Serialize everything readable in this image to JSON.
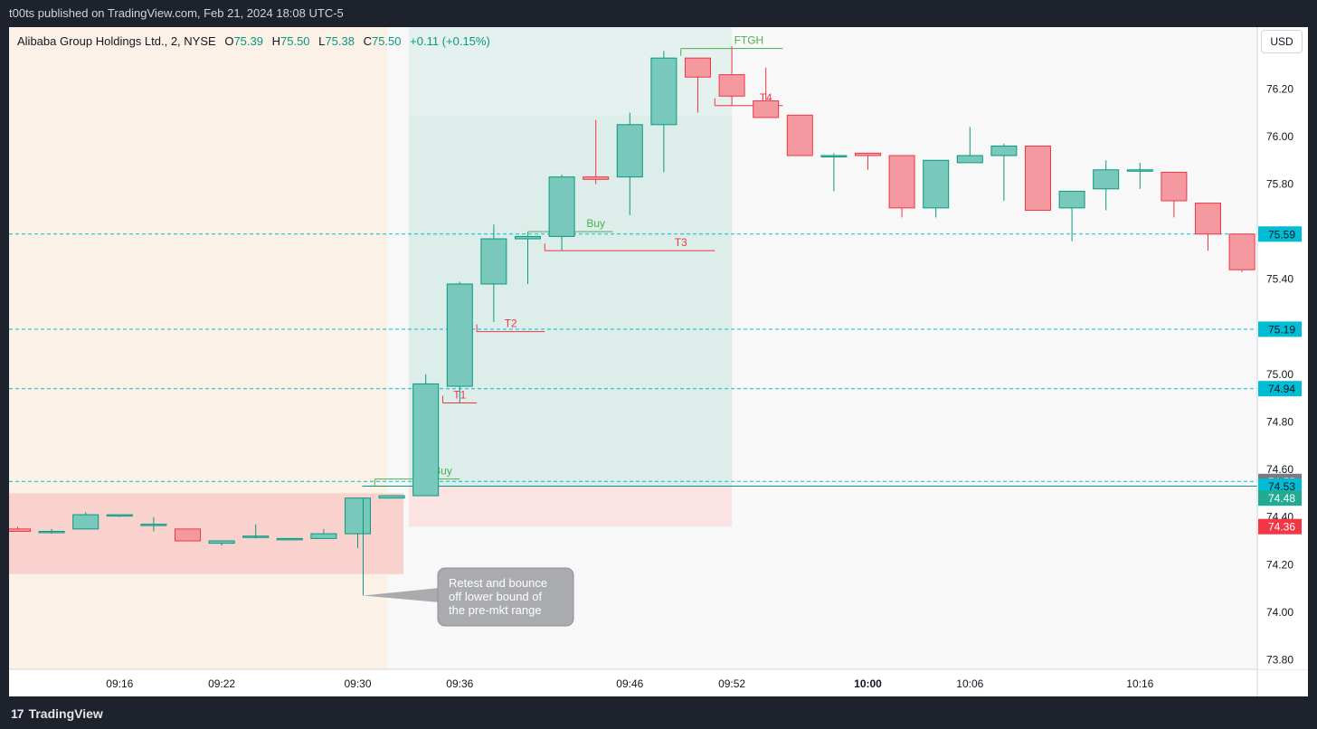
{
  "header": {
    "published_by": "t00ts published on TradingView.com, Feb 21, 2024 18:08 UTC-5"
  },
  "symbol": {
    "name": "Alibaba Group Holdings Ltd., 2, NYSE",
    "open_label": "O",
    "open": "75.39",
    "high_label": "H",
    "high": "75.50",
    "low_label": "L",
    "low": "75.38",
    "close_label": "C",
    "close": "75.50",
    "change": "+0.11 (+0.15%)"
  },
  "currency": "USD",
  "footer": {
    "brand": "TradingView",
    "logo_icon": "tradingview-logo-icon"
  },
  "colors": {
    "up": "#089981",
    "up_fill": "#78c8bc",
    "down": "#f23645",
    "down_fill": "#f4999f",
    "level": "#00bcd4",
    "premarket": "#fbf1e6",
    "range_zone": "#f9d1cd"
  },
  "chart_data": {
    "type": "candlestick",
    "ylim": [
      73.76,
      76.46
    ],
    "y_ticks": [
      "73.80",
      "74.00",
      "74.20",
      "74.40",
      "74.60",
      "74.80",
      "75.00",
      "75.20",
      "75.40",
      "75.60",
      "75.80",
      "76.00",
      "76.20"
    ],
    "x_ticks": [
      {
        "label": "09:16",
        "t": "09:16",
        "bold": false
      },
      {
        "label": "09:22",
        "t": "09:22",
        "bold": false
      },
      {
        "label": "09:30",
        "t": "09:30",
        "bold": false
      },
      {
        "label": "09:36",
        "t": "09:36",
        "bold": false
      },
      {
        "label": "09:46",
        "t": "09:46",
        "bold": false
      },
      {
        "label": "09:52",
        "t": "09:52",
        "bold": false
      },
      {
        "label": "10:00",
        "t": "10:00",
        "bold": true
      },
      {
        "label": "10:06",
        "t": "10:06",
        "bold": false
      },
      {
        "label": "10:16",
        "t": "10:16",
        "bold": false
      }
    ],
    "candles": [
      {
        "t": "09:10",
        "o": 74.35,
        "h": 74.36,
        "l": 74.34,
        "c": 74.34
      },
      {
        "t": "09:12",
        "o": 74.34,
        "h": 74.35,
        "l": 74.33,
        "c": 74.34
      },
      {
        "t": "09:14",
        "o": 74.35,
        "h": 74.42,
        "l": 74.35,
        "c": 74.41
      },
      {
        "t": "09:16",
        "o": 74.41,
        "h": 74.41,
        "l": 74.4,
        "c": 74.41
      },
      {
        "t": "09:18",
        "o": 74.37,
        "h": 74.4,
        "l": 74.34,
        "c": 74.37
      },
      {
        "t": "09:20",
        "o": 74.35,
        "h": 74.35,
        "l": 74.3,
        "c": 74.3
      },
      {
        "t": "09:22",
        "o": 74.29,
        "h": 74.3,
        "l": 74.28,
        "c": 74.3
      },
      {
        "t": "09:24",
        "o": 74.32,
        "h": 74.37,
        "l": 74.31,
        "c": 74.32
      },
      {
        "t": "09:26",
        "o": 74.31,
        "h": 74.31,
        "l": 74.31,
        "c": 74.31
      },
      {
        "t": "09:28",
        "o": 74.31,
        "h": 74.35,
        "l": 74.31,
        "c": 74.33
      },
      {
        "t": "09:30",
        "o": 74.33,
        "h": 74.48,
        "l": 74.27,
        "c": 74.48
      },
      {
        "t": "09:32",
        "o": 74.48,
        "h": 74.49,
        "l": 74.48,
        "c": 74.49
      },
      {
        "t": "09:34",
        "o": 74.49,
        "h": 75.0,
        "l": 74.49,
        "c": 74.96
      },
      {
        "t": "09:36",
        "o": 74.95,
        "h": 75.39,
        "l": 74.88,
        "c": 75.38
      },
      {
        "t": "09:38",
        "o": 75.38,
        "h": 75.63,
        "l": 75.22,
        "c": 75.57
      },
      {
        "t": "09:40",
        "o": 75.57,
        "h": 75.58,
        "l": 75.38,
        "c": 75.58
      },
      {
        "t": "09:42",
        "o": 75.58,
        "h": 75.84,
        "l": 75.52,
        "c": 75.83
      },
      {
        "t": "09:44",
        "o": 75.83,
        "h": 76.07,
        "l": 75.8,
        "c": 75.82
      },
      {
        "t": "09:46",
        "o": 75.83,
        "h": 76.1,
        "l": 75.67,
        "c": 76.05
      },
      {
        "t": "09:48",
        "o": 76.05,
        "h": 76.36,
        "l": 75.85,
        "c": 76.33
      },
      {
        "t": "09:50",
        "o": 76.33,
        "h": 76.33,
        "l": 76.1,
        "c": 76.25
      },
      {
        "t": "09:52",
        "o": 76.26,
        "h": 76.38,
        "l": 76.13,
        "c": 76.17
      },
      {
        "t": "09:54",
        "o": 76.15,
        "h": 76.29,
        "l": 76.08,
        "c": 76.08
      },
      {
        "t": "09:56",
        "o": 76.09,
        "h": 76.09,
        "l": 75.92,
        "c": 75.92
      },
      {
        "t": "09:58",
        "o": 75.92,
        "h": 75.93,
        "l": 75.77,
        "c": 75.92
      },
      {
        "t": "10:00",
        "o": 75.93,
        "h": 75.93,
        "l": 75.86,
        "c": 75.92
      },
      {
        "t": "10:02",
        "o": 75.92,
        "h": 75.92,
        "l": 75.66,
        "c": 75.7
      },
      {
        "t": "10:04",
        "o": 75.7,
        "h": 75.9,
        "l": 75.66,
        "c": 75.9
      },
      {
        "t": "10:06",
        "o": 75.89,
        "h": 76.04,
        "l": 75.89,
        "c": 75.92
      },
      {
        "t": "10:08",
        "o": 75.92,
        "h": 75.97,
        "l": 75.73,
        "c": 75.96
      },
      {
        "t": "10:10",
        "o": 75.96,
        "h": 75.96,
        "l": 75.69,
        "c": 75.69
      },
      {
        "t": "10:12",
        "o": 75.7,
        "h": 75.77,
        "l": 75.56,
        "c": 75.77
      },
      {
        "t": "10:14",
        "o": 75.78,
        "h": 75.9,
        "l": 75.69,
        "c": 75.86
      },
      {
        "t": "10:16",
        "o": 75.86,
        "h": 75.89,
        "l": 75.78,
        "c": 75.86
      },
      {
        "t": "10:18",
        "o": 75.85,
        "h": 75.85,
        "l": 75.66,
        "c": 75.73
      },
      {
        "t": "10:20",
        "o": 75.72,
        "h": 75.72,
        "l": 75.52,
        "c": 75.59
      },
      {
        "t": "10:22",
        "o": 75.59,
        "h": 75.59,
        "l": 75.43,
        "c": 75.44
      }
    ],
    "zones": [
      {
        "name": "premarket-session",
        "t0": "09:08",
        "t1": "09:29",
        "y0": 73.76,
        "y1": 76.46,
        "color": "#fbf1e6"
      },
      {
        "name": "premarket-range",
        "t0": "09:08",
        "t1": "09:30",
        "y0": 74.16,
        "y1": 74.5,
        "color": "#f9d1cd"
      },
      {
        "name": "position-profit",
        "t0": "09:33",
        "t1": "09:52",
        "y0": 74.53,
        "y1": 76.46,
        "color": "#e4f1ee"
      },
      {
        "name": "position-profit-target",
        "t0": "09:33",
        "t1": "09:52",
        "y0": 74.53,
        "y1": 76.09,
        "color": "#ddeeea"
      },
      {
        "name": "position-risk",
        "t0": "09:33",
        "t1": "09:52",
        "y0": 74.36,
        "y1": 74.53,
        "color": "#fbe3e3"
      }
    ],
    "levels": [
      {
        "price": 75.59,
        "label": "75.59",
        "color": "#00bcd4",
        "label_color": "#00bcd4"
      },
      {
        "price": 75.19,
        "label": "75.19",
        "color": "#00bcd4",
        "label_color": "#00bcd4"
      },
      {
        "price": 74.94,
        "label": "74.94",
        "color": "#00bcd4",
        "label_color": "#00bcd4"
      },
      {
        "price": 74.55,
        "label": "74.55",
        "color": "#00bcd4",
        "label_color": "#787b86"
      }
    ],
    "price_badges": [
      {
        "price": 74.53,
        "label": "74.53",
        "color": "#00bcd4"
      },
      {
        "price": 74.48,
        "label": "74.48",
        "color": "#22ab94"
      },
      {
        "price": 74.36,
        "label": "74.36",
        "color": "#f23645"
      }
    ],
    "current_price_line": {
      "price": 74.53,
      "t0": "09:30",
      "color": "#089981"
    },
    "annotations": [
      {
        "text": "Buy",
        "kind": "buy",
        "t0": "09:31",
        "t1": "09:36",
        "price": 74.56,
        "label_t": "09:35"
      },
      {
        "text": "Buy",
        "kind": "buy",
        "t0": "09:40",
        "t1": "09:45",
        "price": 75.6,
        "label_t": "09:44"
      },
      {
        "text": "FTGH",
        "kind": "buy",
        "t0": "09:49",
        "t1": "09:55",
        "price": 76.37,
        "label_t": "09:53"
      },
      {
        "text": "T1",
        "kind": "target",
        "t0": "09:35",
        "t1": "09:37",
        "price": 74.88,
        "label_t": "09:36"
      },
      {
        "text": "T2",
        "kind": "target",
        "t0": "09:37",
        "t1": "09:41",
        "price": 75.18,
        "label_t": "09:39"
      },
      {
        "text": "T3",
        "kind": "target",
        "t0": "09:41",
        "t1": "09:51",
        "price": 75.52,
        "label_t": "09:49"
      },
      {
        "text": "T4",
        "kind": "target",
        "t0": "09:51",
        "t1": "09:55",
        "price": 76.13,
        "label_t": "09:54"
      }
    ],
    "callout": {
      "text": [
        "Retest and bounce",
        "off lower bound of",
        "the pre-mkt range"
      ],
      "anchor_t": "09:30",
      "anchor_price": 74.07,
      "top_price": 74.48
    }
  }
}
